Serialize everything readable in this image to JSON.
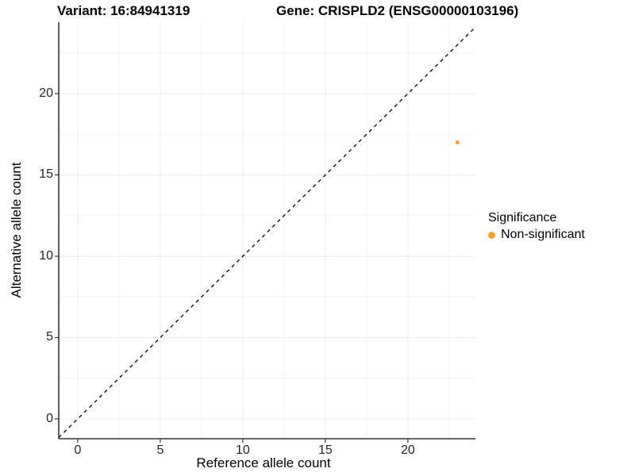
{
  "titles": {
    "variant": "Variant: 16:84941319",
    "gene": "Gene: CRISPLD2 (ENSG00000103196)"
  },
  "chart_data": {
    "type": "scatter",
    "title": "Variant: 16:84941319 | Gene: CRISPLD2 (ENSG00000103196)",
    "xlabel": "Reference allele count",
    "ylabel": "Alternative allele count",
    "x_ticks": [
      0,
      5,
      10,
      15,
      20
    ],
    "y_ticks": [
      0,
      5,
      10,
      15,
      20
    ],
    "xlim": [
      -1.15,
      24.09
    ],
    "ylim": [
      -1.22,
      24.39
    ],
    "minor_interval": 2.5,
    "grid": "major+minor",
    "points": [
      {
        "x": 23,
        "y": 17,
        "series": "Non-significant"
      }
    ],
    "identity_line": {
      "slope": 1,
      "intercept": 0,
      "style": "dashed",
      "color": "#000000"
    },
    "legend": {
      "title": "Significance",
      "position": "right",
      "items": [
        {
          "label": "Non-significant",
          "color": "#F9A12D"
        }
      ]
    },
    "colors": {
      "point": "#F9A12D",
      "axis_line": "#333333",
      "grid_major": "#EBEBEB",
      "grid_minor": "#F3F3F3",
      "tick_text": "#262626"
    }
  }
}
